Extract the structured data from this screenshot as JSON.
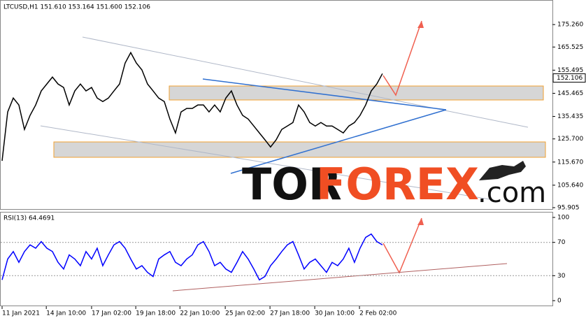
{
  "chart_data": [
    {
      "type": "line",
      "title": "LTCUSD,H1  151.610 153.164 151.600 152.106",
      "color": "#000000",
      "values": [
        116.2,
        137.4,
        143.4,
        140.4,
        129.8,
        135.9,
        140.4,
        146.5,
        149.5,
        152.5,
        149.5,
        148.0,
        140.4,
        146.5,
        149.5,
        146.5,
        148.0,
        143.4,
        141.9,
        143.4,
        146.5,
        149.5,
        158.6,
        163.1,
        158.6,
        155.6,
        149.5,
        146.5,
        143.4,
        141.9,
        134.3,
        128.3,
        137.4,
        138.9,
        138.9,
        140.4,
        140.4,
        137.4,
        140.4,
        137.4,
        143.4,
        146.5,
        140.4,
        135.9,
        134.3,
        131.3,
        128.3,
        125.3,
        122.2,
        125.3,
        129.8,
        131.3,
        132.8,
        140.4,
        137.4,
        132.8,
        131.3,
        132.8,
        131.3,
        131.3,
        129.8,
        128.3,
        131.3,
        132.8,
        135.9,
        140.4,
        146.5,
        149.5,
        154.0
      ],
      "last_price": 152.106,
      "xlim": [
        0,
        98.4
      ],
      "xticks": [
        {
          "value": 0,
          "label": "11 Jan 2021"
        },
        {
          "value": 7.9,
          "label": "14 Jan 10:00"
        },
        {
          "value": 16,
          "label": "17 Jan 02:00"
        },
        {
          "value": 23.9,
          "label": "19 Jan 18:00"
        },
        {
          "value": 31.8,
          "label": "22 Jan 10:00"
        },
        {
          "value": 39.9,
          "label": "25 Jan 02:00"
        },
        {
          "value": 47.9,
          "label": "27 Jan 18:00"
        },
        {
          "value": 55.9,
          "label": "30 Jan 10:00"
        },
        {
          "value": 63.9,
          "label": "2 Feb 02:00"
        }
      ],
      "ylim": [
        95.0,
        185.3
      ],
      "yticks": [
        {
          "value": 175.26,
          "label": "175.260"
        },
        165.525,
        155.495,
        145.465,
        135.435,
        {
          "value": 125.7,
          "label": "125.700"
        },
        {
          "value": 115.67,
          "label": "115.670"
        },
        {
          "value": 105.64,
          "label": "105.640"
        },
        95.905
      ],
      "watermark": [
        "TOR",
        "FOREX",
        ".com"
      ]
    },
    {
      "type": "line",
      "title": "RSI(13) 64.4691",
      "color": "#0000ff",
      "values": [
        25,
        50,
        59,
        46,
        59,
        67,
        63,
        71,
        63,
        59,
        46,
        38,
        55,
        50,
        42,
        59,
        50,
        63,
        42,
        55,
        67,
        71,
        63,
        50,
        38,
        42,
        34,
        29,
        50,
        55,
        59,
        46,
        42,
        50,
        55,
        67,
        71,
        59,
        42,
        46,
        38,
        34,
        46,
        59,
        50,
        38,
        25,
        29,
        42,
        50,
        59,
        67,
        71,
        55,
        38,
        46,
        50,
        42,
        34,
        46,
        42,
        50,
        63,
        46,
        63,
        76,
        80,
        71,
        67
      ],
      "xlim": [
        0,
        98.4
      ],
      "ylim": [
        -6.7,
        106.7
      ],
      "yticks": [
        100,
        70,
        30,
        0
      ],
      "grid": [
        70,
        30
      ]
    }
  ]
}
